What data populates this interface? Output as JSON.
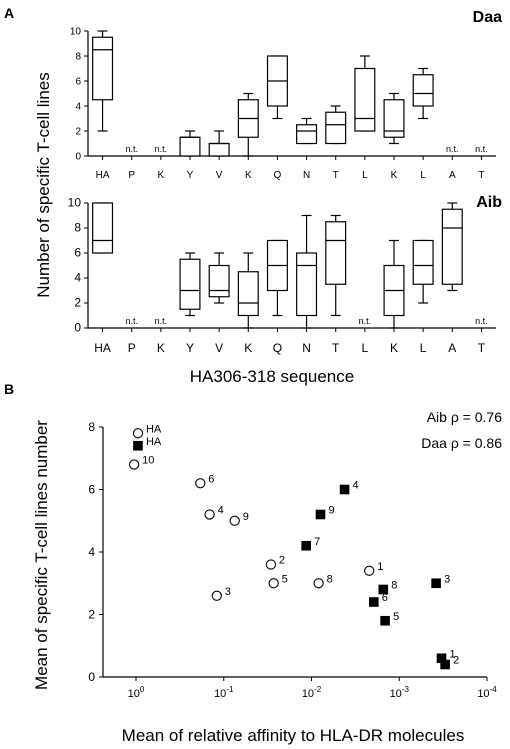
{
  "panels": {
    "a_label": "A",
    "b_label": "B"
  },
  "chart_data": [
    {
      "type": "box",
      "panel": "A",
      "title": "Daa",
      "ylabel": "Number of specific T-cell lines",
      "xlabel": "",
      "ylim": [
        0,
        10
      ],
      "yticks": [
        0,
        2,
        4,
        6,
        8,
        10
      ],
      "not_tested_label": "n.t.",
      "categories": [
        "HA",
        "P",
        "K",
        "Y",
        "V",
        "K",
        "Q",
        "N",
        "T",
        "L",
        "K",
        "L",
        "A",
        "T"
      ],
      "boxes": [
        {
          "min": 2,
          "q1": 4.5,
          "median": 8.5,
          "q3": 9.5,
          "max": 10
        },
        null,
        null,
        {
          "min": 0,
          "q1": 0,
          "median": 1.5,
          "q3": 1.5,
          "max": 2
        },
        {
          "min": 0,
          "q1": 0,
          "median": 1,
          "q3": 1,
          "max": 2
        },
        {
          "min": 0,
          "q1": 1.5,
          "median": 3,
          "q3": 4.5,
          "max": 5
        },
        {
          "min": 3,
          "q1": 4,
          "median": 6,
          "q3": 8,
          "max": 8
        },
        {
          "min": 1,
          "q1": 1,
          "median": 2,
          "q3": 2.5,
          "max": 3
        },
        {
          "min": 1,
          "q1": 1,
          "median": 2.5,
          "q3": 3.5,
          "max": 4
        },
        {
          "min": 2,
          "q1": 2,
          "median": 3,
          "q3": 7,
          "max": 8
        },
        {
          "min": 1,
          "q1": 1.5,
          "median": 2,
          "q3": 4.5,
          "max": 5
        },
        {
          "min": 3,
          "q1": 4,
          "median": 5,
          "q3": 6.5,
          "max": 7
        },
        null,
        null
      ]
    },
    {
      "type": "box",
      "panel": "A",
      "title": "Aib",
      "ylabel": "",
      "xlabel": "HA306-318 sequence",
      "ylim": [
        0,
        10
      ],
      "yticks": [
        0,
        2,
        4,
        6,
        8,
        10
      ],
      "not_tested_label": "n.t.",
      "categories": [
        "HA",
        "P",
        "K",
        "Y",
        "V",
        "K",
        "Q",
        "N",
        "T",
        "L",
        "K",
        "L",
        "A",
        "T"
      ],
      "boxes": [
        {
          "min": 6,
          "q1": 6,
          "median": 7,
          "q3": 10,
          "max": 10
        },
        null,
        null,
        {
          "min": 1,
          "q1": 1.5,
          "median": 3,
          "q3": 5.5,
          "max": 6
        },
        {
          "min": 2,
          "q1": 2.5,
          "median": 3,
          "q3": 5,
          "max": 6
        },
        {
          "min": 0,
          "q1": 1,
          "median": 2,
          "q3": 4.5,
          "max": 6
        },
        {
          "min": 1,
          "q1": 3,
          "median": 5,
          "q3": 7,
          "max": 7
        },
        {
          "min": 0,
          "q1": 1,
          "median": 5,
          "q3": 6,
          "max": 9
        },
        {
          "min": 1,
          "q1": 3.5,
          "median": 7,
          "q3": 8.5,
          "max": 9
        },
        null,
        {
          "min": 0,
          "q1": 1,
          "median": 3,
          "q3": 5,
          "max": 7
        },
        {
          "min": 2,
          "q1": 3.5,
          "median": 5,
          "q3": 7,
          "max": 7
        },
        {
          "min": 3,
          "q1": 3.5,
          "median": 8,
          "q3": 9.5,
          "max": 10
        },
        null
      ]
    },
    {
      "type": "scatter",
      "panel": "B",
      "xlabel": "Mean of relative affinity to HLA-DR molecules",
      "ylabel": "Mean of specific T-cell lines number",
      "xscale": "log-reversed",
      "xlim": [
        1,
        0.0001
      ],
      "xticks": [
        {
          "value": 1,
          "base": "10",
          "exp": "0"
        },
        {
          "value": 0.1,
          "base": "10",
          "exp": "-1"
        },
        {
          "value": 0.01,
          "base": "10",
          "exp": "-2"
        },
        {
          "value": 0.001,
          "base": "10",
          "exp": "-3"
        },
        {
          "value": 0.0001,
          "base": "10",
          "exp": "-4"
        }
      ],
      "ylim": [
        0,
        8
      ],
      "yticks": [
        0,
        2,
        4,
        6,
        8
      ],
      "annotations": [
        {
          "series": "Aib",
          "text": "Aib  ρ = 0.76"
        },
        {
          "series": "Daa",
          "text": "Daa ρ = 0.86"
        }
      ],
      "series": [
        {
          "marker": "open-circle",
          "points": [
            {
              "label": "HA",
              "x": 0.95,
              "y": 7.8
            },
            {
              "label": "10",
              "x": 1.05,
              "y": 6.8
            },
            {
              "label": "6",
              "x": 0.185,
              "y": 6.2
            },
            {
              "label": "4",
              "x": 0.145,
              "y": 5.2
            },
            {
              "label": "9",
              "x": 0.075,
              "y": 5.0
            },
            {
              "label": "2",
              "x": 0.029,
              "y": 3.6
            },
            {
              "label": "5",
              "x": 0.027,
              "y": 3.0
            },
            {
              "label": "3",
              "x": 0.12,
              "y": 2.6
            },
            {
              "label": "8",
              "x": 0.0083,
              "y": 3.0
            },
            {
              "label": "1",
              "x": 0.0022,
              "y": 3.4
            }
          ]
        },
        {
          "marker": "filled-square",
          "points": [
            {
              "label": "HA",
              "x": 0.95,
              "y": 7.4
            },
            {
              "label": "4",
              "x": 0.0042,
              "y": 6.0
            },
            {
              "label": "9",
              "x": 0.0079,
              "y": 5.2
            },
            {
              "label": "7",
              "x": 0.0115,
              "y": 4.2
            },
            {
              "label": "3",
              "x": 0.00038,
              "y": 3.0
            },
            {
              "label": "8",
              "x": 0.00152,
              "y": 2.8
            },
            {
              "label": "6",
              "x": 0.00195,
              "y": 2.4
            },
            {
              "label": "5",
              "x": 0.00145,
              "y": 1.8
            },
            {
              "label": "1",
              "x": 0.00033,
              "y": 0.6
            },
            {
              "label": "2",
              "x": 0.0003,
              "y": 0.4
            }
          ]
        }
      ]
    }
  ]
}
